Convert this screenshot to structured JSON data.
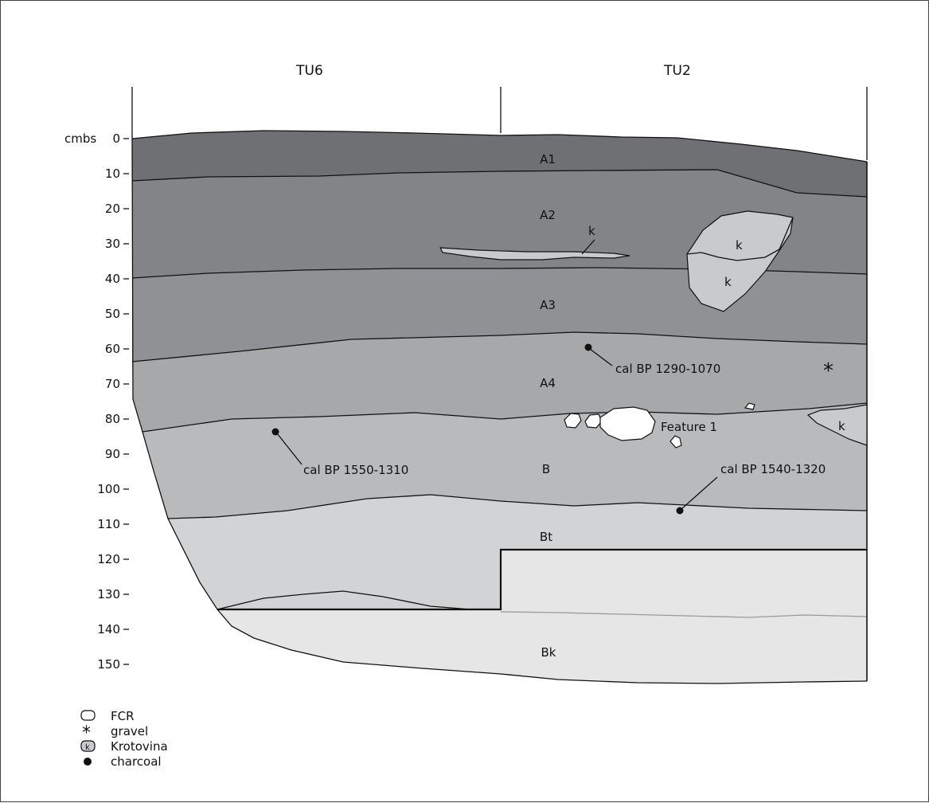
{
  "units": {
    "left": "TU6",
    "right": "TU2"
  },
  "depth_axis": {
    "unit_label": "cmbs",
    "ticks": [
      "0",
      "10",
      "20",
      "30",
      "40",
      "50",
      "60",
      "70",
      "80",
      "90",
      "100",
      "110",
      "120",
      "130",
      "140",
      "150"
    ]
  },
  "horizons": [
    "A1",
    "A2",
    "A3",
    "A4",
    "B",
    "Bt",
    "Bk"
  ],
  "features": {
    "krotovina_mark": "k",
    "feature_label": "Feature 1",
    "gravel_mark": "*"
  },
  "dates": [
    "cal BP 1290-1070",
    "cal BP 1550-1310",
    "cal BP 1540-1320"
  ],
  "legend": [
    {
      "icon": "fcr-outline-icon",
      "label": "FCR"
    },
    {
      "icon": "gravel-asterisk-icon",
      "label": "gravel"
    },
    {
      "icon": "krotovina-icon",
      "label": "Krotovina"
    },
    {
      "icon": "charcoal-dot-icon",
      "label": "charcoal"
    }
  ],
  "colors": {
    "A1": "#6e7073",
    "A2": "#838487",
    "A3": "#909194",
    "A4": "#a7a8aa",
    "B": "#b9babc",
    "Bt": "#d2d3d5",
    "Bk": "#e6e6e6",
    "krotovina": "#c9cacc",
    "fcr": "#ffffff"
  }
}
